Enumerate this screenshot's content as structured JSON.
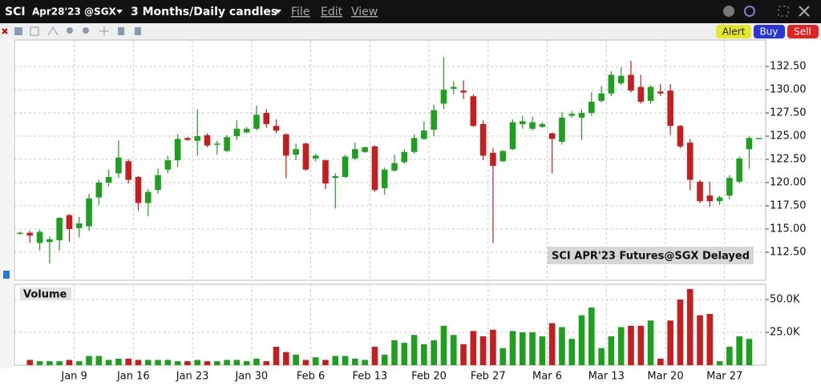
{
  "header": {
    "symbol": "SCI",
    "contract": "Apr28'23 @SGX",
    "period": "3 Months/Daily candles",
    "menu": [
      "File",
      "Edit",
      "View"
    ]
  },
  "toolbar": {
    "buttons": [
      "Alert",
      "Buy",
      "Sell"
    ]
  },
  "chart_data": [
    {
      "type": "candlestick",
      "annotation": "SCI APR'23 Futures@SGX Delayed",
      "up_color": "#1ea01e",
      "down_color": "#c41e1e",
      "grid": true,
      "categories": [
        null,
        null,
        null,
        null,
        null,
        null,
        "Jan 9",
        null,
        null,
        null,
        null,
        null,
        "Jan 16",
        null,
        null,
        null,
        null,
        null,
        "Jan 23",
        null,
        null,
        null,
        null,
        null,
        "Jan 30",
        null,
        null,
        null,
        null,
        null,
        "Feb 6",
        null,
        null,
        null,
        null,
        null,
        "Feb 13",
        null,
        null,
        null,
        null,
        null,
        "Feb 20",
        null,
        null,
        null,
        null,
        null,
        "Feb 27",
        null,
        null,
        null,
        null,
        null,
        "Mar 6",
        null,
        null,
        null,
        null,
        null,
        "Mar 13",
        null,
        null,
        null,
        null,
        null,
        "Mar 20",
        null,
        null,
        null,
        null,
        null,
        "Mar 27",
        null,
        null,
        null
      ],
      "open": [
        114.5,
        114.6,
        113.5,
        113.6,
        113.8,
        116.5,
        115.1,
        115.3,
        118.4,
        120.0,
        121.0,
        122.3,
        120.6,
        117.8,
        119.2,
        121.4,
        122.4,
        124.8,
        124.5,
        125.1,
        124.1,
        123.4,
        125.0,
        125.4,
        125.8,
        127.5,
        126.1,
        125.2,
        123.0,
        124.2,
        122.6,
        122.4,
        120.5,
        120.6,
        122.6,
        123.3,
        123.9,
        119.4,
        121.3,
        122.2,
        123.3,
        124.7,
        125.7,
        128.5,
        130.1,
        129.9,
        129.3,
        126.3,
        123.2,
        122.3,
        123.6,
        126.3,
        125.8,
        126.0,
        125.3,
        124.4,
        127.2,
        127.0,
        127.5,
        128.8,
        129.6,
        130.7,
        131.6,
        130.3,
        128.8,
        129.8,
        129.9,
        126.1,
        124.3,
        120.1,
        118.6,
        118.0,
        118.6,
        120.1,
        123.6,
        124.8
      ],
      "high": [
        114.7,
        114.8,
        114.9,
        114.2,
        116.3,
        116.6,
        116.3,
        118.8,
        120.3,
        121.4,
        124.5,
        122.5,
        120.7,
        119.3,
        121.5,
        122.9,
        125.2,
        124.9,
        127.9,
        125.3,
        124.5,
        125.1,
        126.7,
        126.0,
        128.3,
        127.9,
        126.8,
        125.3,
        124.2,
        124.3,
        123.1,
        122.5,
        121.0,
        123.0,
        124.3,
        123.9,
        124.0,
        121.6,
        123.0,
        123.6,
        125.2,
        126.6,
        128.4,
        133.5,
        130.9,
        131.0,
        129.5,
        126.7,
        123.7,
        123.5,
        126.8,
        127.2,
        127.1,
        126.5,
        125.4,
        127.6,
        127.7,
        127.9,
        129.7,
        130.4,
        132.0,
        132.4,
        133.1,
        131.6,
        130.5,
        130.6,
        130.6,
        126.2,
        124.7,
        120.3,
        120.1,
        118.6,
        120.8,
        122.8,
        125.0,
        124.8
      ],
      "low": [
        114.4,
        113.5,
        112.7,
        111.3,
        112.7,
        113.6,
        114.1,
        114.8,
        117.6,
        119.6,
        120.5,
        119.9,
        117.0,
        116.4,
        118.8,
        121.0,
        121.7,
        124.5,
        122.9,
        123.8,
        123.0,
        123.3,
        124.6,
        125.3,
        125.6,
        125.9,
        125.3,
        120.5,
        122.4,
        121.3,
        122.3,
        119.3,
        117.2,
        120.5,
        122.4,
        123.2,
        119.0,
        118.7,
        121.2,
        122.0,
        123.1,
        124.6,
        125.0,
        127.9,
        129.5,
        129.0,
        126.0,
        122.4,
        113.5,
        122.2,
        123.5,
        125.8,
        125.6,
        125.9,
        121.0,
        124.1,
        127.0,
        124.6,
        127.2,
        128.6,
        129.3,
        130.5,
        129.7,
        128.5,
        128.5,
        129.3,
        125.1,
        123.7,
        119.2,
        117.8,
        117.4,
        117.6,
        118.2,
        119.9,
        121.5,
        124.8
      ],
      "close": [
        114.6,
        114.3,
        114.7,
        113.9,
        116.2,
        115.0,
        115.6,
        118.3,
        120.0,
        120.6,
        122.7,
        120.3,
        117.8,
        119.0,
        120.8,
        122.4,
        124.7,
        124.6,
        125.0,
        124.0,
        124.2,
        124.9,
        125.8,
        125.8,
        127.3,
        126.3,
        125.6,
        122.9,
        123.6,
        121.4,
        122.9,
        119.9,
        120.7,
        122.8,
        123.6,
        123.8,
        119.2,
        121.4,
        122.1,
        123.3,
        124.8,
        125.6,
        127.8,
        130.0,
        130.3,
        129.7,
        126.1,
        122.9,
        121.8,
        123.4,
        126.5,
        126.6,
        126.5,
        126.3,
        124.7,
        127.0,
        127.4,
        127.5,
        128.7,
        129.6,
        131.6,
        131.5,
        129.9,
        128.7,
        130.3,
        129.6,
        126.1,
        123.9,
        120.3,
        118.0,
        118.0,
        118.4,
        120.5,
        122.6,
        124.8,
        124.8
      ],
      "ylim": [
        109.48,
        135.35
      ],
      "yticks": [
        {
          "value": 112.5,
          "label": "112.50"
        },
        {
          "value": 115,
          "label": "115.00"
        },
        {
          "value": 117.5,
          "label": "117.50"
        },
        {
          "value": 120,
          "label": "120.00"
        },
        {
          "value": 122.5,
          "label": "122.50"
        },
        {
          "value": 125,
          "label": "125.00"
        },
        {
          "value": 127.5,
          "label": "127.50"
        },
        {
          "value": 130,
          "label": "130.00"
        },
        {
          "value": 132.5,
          "label": "132.50"
        }
      ]
    },
    {
      "type": "bar",
      "title": "Volume",
      "grid": true,
      "values": [
        null,
        4000,
        3000,
        3000,
        3000,
        4000,
        3000,
        7000,
        7000,
        4000,
        5000,
        5000,
        4000,
        4000,
        4000,
        4000,
        3000,
        3000,
        4000,
        3000,
        3000,
        4000,
        4000,
        3000,
        5000,
        3000,
        14000,
        10000,
        8000,
        4000,
        6000,
        4000,
        7000,
        7000,
        5000,
        4000,
        14000,
        8000,
        19000,
        17000,
        23000,
        16000,
        19000,
        30000,
        23000,
        16000,
        26000,
        22000,
        27000,
        13000,
        26000,
        25000,
        25000,
        22000,
        32000,
        29000,
        20000,
        38000,
        44000,
        13000,
        22000,
        29000,
        30000,
        30000,
        34000,
        5000,
        34000,
        50000,
        58000,
        38000,
        39000,
        3000,
        14000,
        22000,
        20000,
        null
      ],
      "ylim": [
        0,
        61600
      ],
      "yticks": [
        {
          "value": 25000,
          "label": "25.0K"
        },
        {
          "value": 50000,
          "label": "50.0K"
        }
      ]
    }
  ]
}
